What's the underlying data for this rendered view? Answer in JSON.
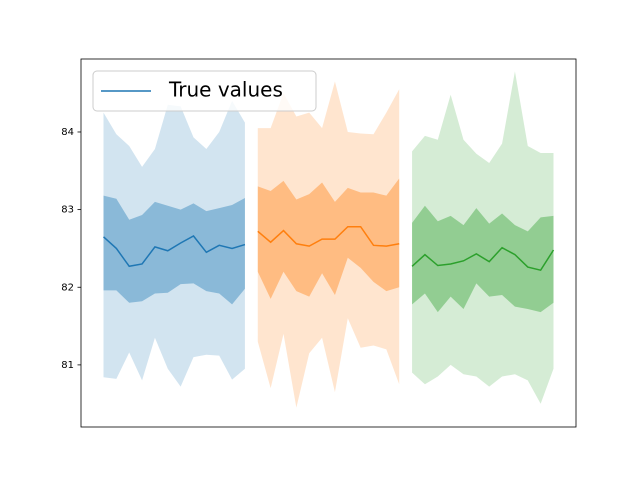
{
  "chart_data": {
    "type": "line-band",
    "xlim": [
      -1.75,
      36.75
    ],
    "ylim": [
      80.2,
      84.94
    ],
    "yticks": [
      81,
      82,
      83,
      84
    ],
    "legend": "upper left",
    "series": [
      {
        "name": "True values",
        "color": "#1f77b4",
        "x": [
          0,
          1,
          2,
          3,
          4,
          5,
          6,
          7,
          8,
          9,
          10,
          11
        ],
        "values": [
          82.65,
          82.5,
          82.27,
          82.3,
          82.52,
          82.47,
          82.57,
          82.66,
          82.45,
          82.54,
          82.5,
          82.55
        ],
        "inner_lower": [
          81.96,
          81.96,
          81.8,
          81.82,
          81.92,
          81.93,
          82.04,
          82.05,
          81.95,
          81.92,
          81.78,
          81.98
        ],
        "inner_upper": [
          83.18,
          83.14,
          82.87,
          82.93,
          83.1,
          83.05,
          83.0,
          83.08,
          82.98,
          83.02,
          83.06,
          83.15
        ],
        "outer_lower": [
          80.84,
          80.82,
          81.16,
          80.8,
          81.35,
          80.95,
          80.72,
          81.1,
          81.13,
          81.12,
          80.81,
          80.95
        ],
        "outer_upper": [
          84.25,
          83.97,
          83.82,
          83.55,
          83.78,
          84.35,
          84.33,
          83.93,
          83.78,
          84.0,
          84.4,
          84.12
        ]
      },
      {
        "color": "#ff7f0e",
        "x": [
          12,
          13,
          14,
          15,
          16,
          17,
          18,
          19,
          20,
          21,
          22,
          23
        ],
        "values": [
          82.72,
          82.58,
          82.73,
          82.56,
          82.53,
          82.62,
          82.62,
          82.78,
          82.78,
          82.54,
          82.53,
          82.56
        ],
        "inner_lower": [
          82.2,
          81.85,
          82.2,
          81.95,
          81.88,
          82.18,
          81.9,
          82.38,
          82.25,
          82.07,
          81.95,
          82.0
        ],
        "inner_upper": [
          83.3,
          83.24,
          83.37,
          83.13,
          83.2,
          83.35,
          83.1,
          83.28,
          83.22,
          83.22,
          83.18,
          83.4
        ],
        "outer_lower": [
          81.3,
          80.7,
          81.4,
          80.45,
          81.15,
          81.35,
          80.65,
          81.6,
          81.22,
          81.25,
          81.2,
          80.75
        ],
        "outer_upper": [
          84.05,
          84.05,
          84.5,
          84.2,
          84.25,
          84.05,
          84.65,
          84.0,
          83.98,
          83.97,
          84.25,
          84.55
        ]
      },
      {
        "color": "#2ca02c",
        "x": [
          24,
          25,
          26,
          27,
          28,
          29,
          30,
          31,
          32,
          33,
          34,
          35
        ],
        "values": [
          82.27,
          82.42,
          82.28,
          82.3,
          82.34,
          82.43,
          82.33,
          82.51,
          82.42,
          82.26,
          82.22,
          82.48
        ],
        "inner_lower": [
          81.78,
          81.92,
          81.68,
          81.88,
          81.72,
          82.05,
          81.88,
          81.9,
          81.75,
          81.72,
          81.68,
          81.8
        ],
        "inner_upper": [
          82.83,
          83.05,
          82.85,
          82.92,
          82.8,
          83.02,
          82.82,
          82.95,
          82.8,
          82.72,
          82.9,
          82.92
        ],
        "outer_lower": [
          80.9,
          80.75,
          80.85,
          81.0,
          80.88,
          80.85,
          80.72,
          80.85,
          80.88,
          80.8,
          80.5,
          80.95
        ],
        "outer_upper": [
          83.75,
          83.95,
          83.9,
          84.48,
          83.9,
          83.72,
          83.6,
          83.85,
          84.78,
          83.82,
          83.73,
          83.73
        ]
      }
    ]
  }
}
